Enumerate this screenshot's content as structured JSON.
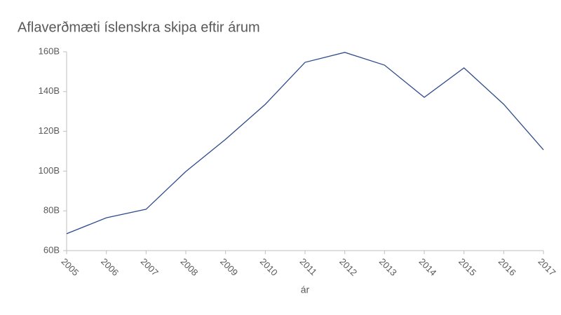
{
  "chart_data": {
    "type": "line",
    "title": "Aflaverðmæti íslenskra skipa eftir árum",
    "x_label": "ár",
    "x": [
      2005,
      2006,
      2007,
      2008,
      2009,
      2010,
      2011,
      2012,
      2013,
      2014,
      2015,
      2016,
      2017
    ],
    "xlim": [
      2005,
      2017
    ],
    "xticks": [
      2005,
      2006,
      2007,
      2008,
      2009,
      2010,
      2011,
      2012,
      2013,
      2014,
      2015,
      2016,
      2017
    ],
    "series": [
      {
        "name": "Aflaverðmæti",
        "color": "#2f4b8c",
        "values": [
          68500000000,
          76500000000,
          80800000000,
          99800000000,
          116000000000,
          133600000000,
          154700000000,
          159700000000,
          153300000000,
          137100000000,
          151900000000,
          133600000000,
          110700000000
        ]
      }
    ],
    "ylim": [
      60000000000,
      160000000000
    ],
    "yticks": [
      {
        "value": 60000000000,
        "label": "60B"
      },
      {
        "value": 80000000000,
        "label": "80B"
      },
      {
        "value": 100000000000,
        "label": "100B"
      },
      {
        "value": 120000000000,
        "label": "120B"
      },
      {
        "value": 140000000000,
        "label": "140B"
      },
      {
        "value": 160000000000,
        "label": "160B"
      }
    ],
    "grid": false
  }
}
